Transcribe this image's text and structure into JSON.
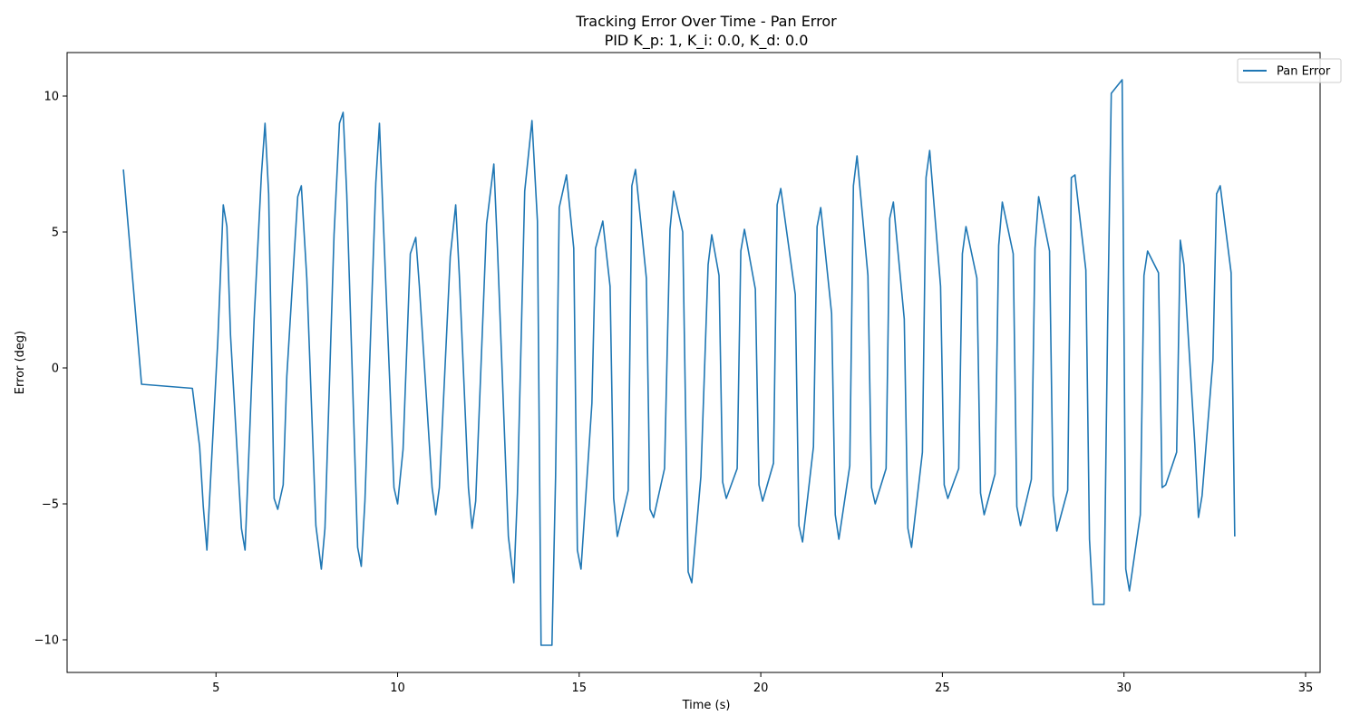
{
  "chart_data": {
    "type": "line",
    "title": "Tracking Error Over Time - Pan Error",
    "subtitle": "PID K_p: 1, K_i: 0.0, K_d: 0.0",
    "xlabel": "Time (s)",
    "ylabel": "Error (deg)",
    "xlim": [
      0.9,
      35.4
    ],
    "ylim": [
      -11.2,
      11.6
    ],
    "xticks": [
      5,
      10,
      15,
      20,
      25,
      30,
      35
    ],
    "yticks": [
      -10,
      -5,
      0,
      5,
      10
    ],
    "xtick_labels": [
      "5",
      "10",
      "15",
      "20",
      "25",
      "30",
      "35"
    ],
    "ytick_labels": [
      "−10",
      "−5",
      "0",
      "5",
      "10"
    ],
    "grid": false,
    "legend_position": "top-right",
    "series": [
      {
        "name": "Pan Error",
        "color": "#1f77b4",
        "x": [
          2.45,
          2.95,
          4.35,
          4.55,
          4.65,
          4.75,
          5.05,
          5.2,
          5.3,
          5.4,
          5.6,
          5.7,
          5.8,
          6.05,
          6.25,
          6.35,
          6.45,
          6.6,
          6.7,
          6.85,
          6.95,
          7.25,
          7.35,
          7.5,
          7.75,
          7.9,
          8.0,
          8.25,
          8.4,
          8.5,
          8.6,
          8.9,
          9.0,
          9.1,
          9.4,
          9.5,
          9.6,
          9.9,
          10.0,
          10.15,
          10.35,
          10.5,
          10.6,
          10.95,
          11.05,
          11.15,
          11.45,
          11.6,
          11.7,
          11.95,
          12.05,
          12.15,
          12.45,
          12.65,
          12.75,
          13.05,
          13.2,
          13.3,
          13.5,
          13.7,
          13.85,
          13.95,
          14.25,
          14.35,
          14.45,
          14.65,
          14.85,
          14.95,
          15.05,
          15.35,
          15.45,
          15.65,
          15.85,
          15.95,
          16.05,
          16.35,
          16.45,
          16.55,
          16.85,
          16.95,
          17.05,
          17.35,
          17.5,
          17.6,
          17.85,
          18.0,
          18.1,
          18.35,
          18.55,
          18.65,
          18.85,
          18.95,
          19.05,
          19.35,
          19.45,
          19.55,
          19.85,
          19.95,
          20.05,
          20.35,
          20.45,
          20.55,
          20.95,
          21.05,
          21.15,
          21.45,
          21.55,
          21.65,
          21.95,
          22.05,
          22.15,
          22.45,
          22.55,
          22.65,
          22.95,
          23.05,
          23.15,
          23.45,
          23.55,
          23.65,
          23.95,
          24.05,
          24.15,
          24.45,
          24.55,
          24.65,
          24.95,
          25.05,
          25.15,
          25.45,
          25.55,
          25.65,
          25.95,
          26.05,
          26.15,
          26.45,
          26.55,
          26.65,
          26.95,
          27.05,
          27.15,
          27.45,
          27.55,
          27.65,
          27.95,
          28.05,
          28.15,
          28.45,
          28.55,
          28.65,
          28.95,
          29.05,
          29.15,
          29.45,
          29.55,
          29.65,
          29.95,
          30.05,
          30.15,
          30.45,
          30.55,
          30.65,
          30.95,
          31.05,
          31.15,
          31.45,
          31.55,
          31.65,
          31.95,
          32.05,
          32.15,
          32.45,
          32.55,
          32.65,
          32.95,
          33.05,
          33.15,
          33.45,
          33.55,
          33.65,
          33.95,
          34.05,
          34.15,
          34.45
        ]
      }
    ]
  }
}
